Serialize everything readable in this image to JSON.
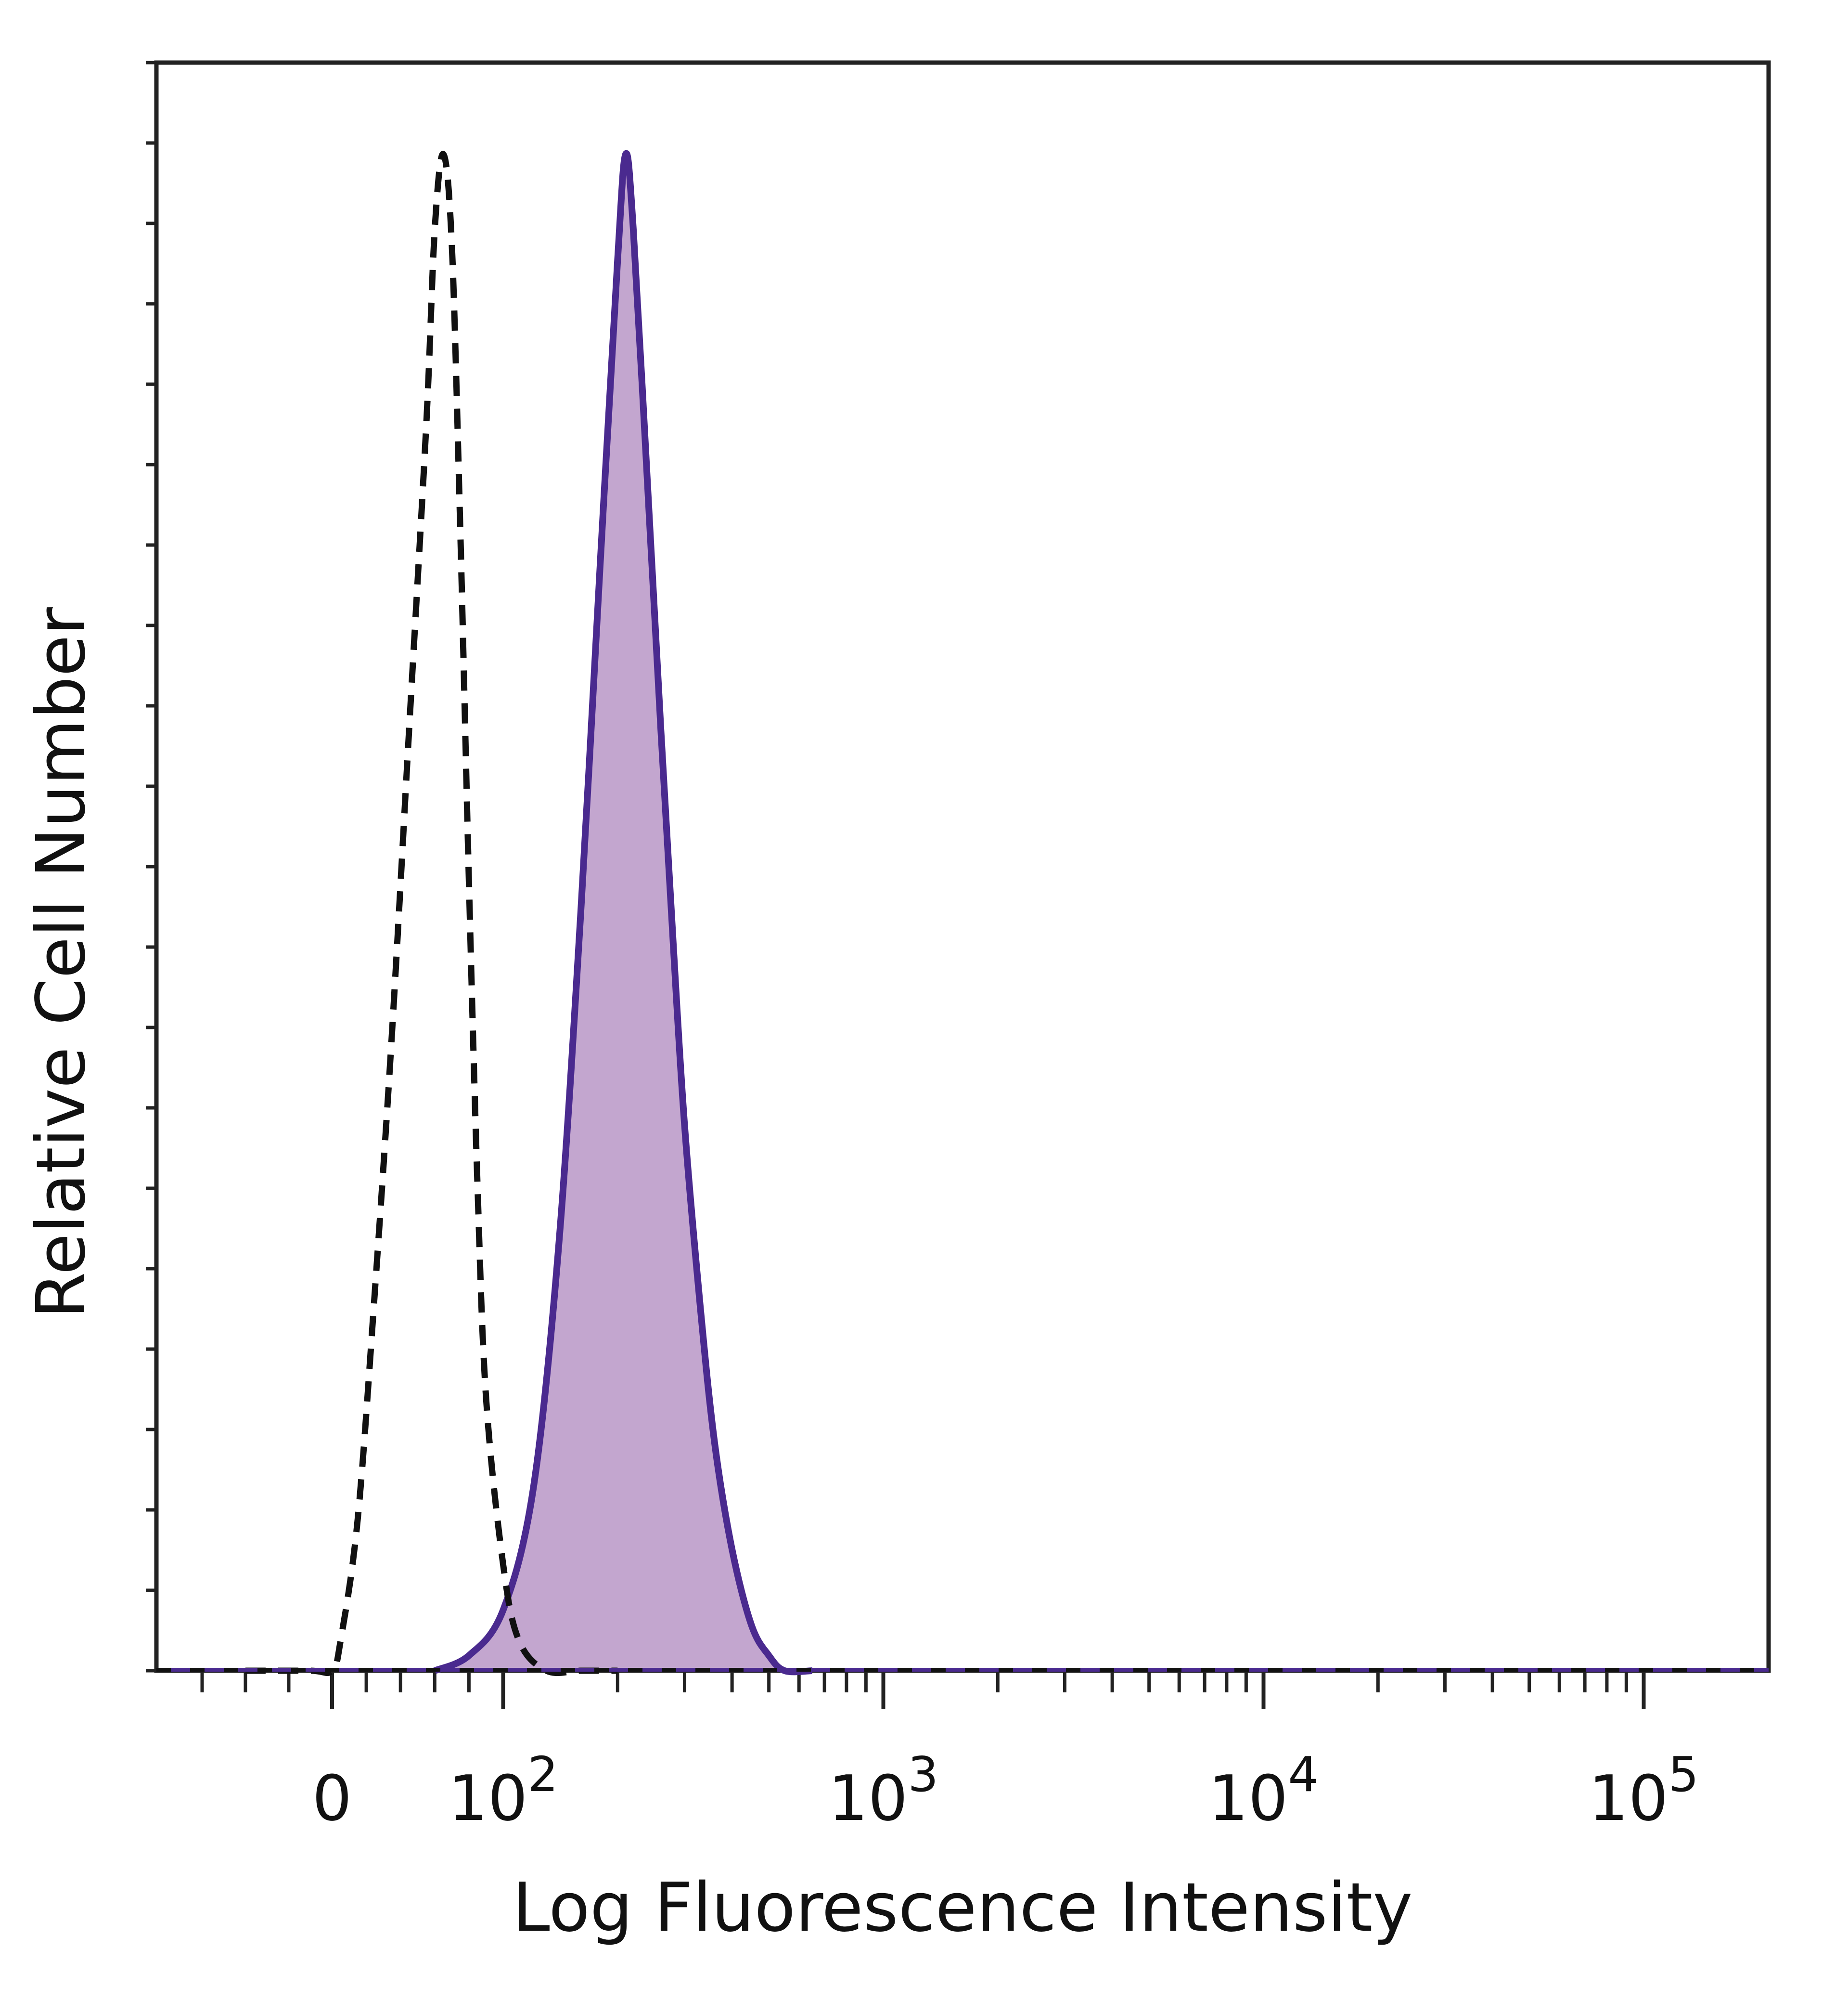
{
  "chart_data": {
    "type": "area",
    "xlabel": "Log Fluorescence Intensity",
    "ylabel": "Relative Cell Number",
    "x_scale": "biexponential",
    "x_tick_labels": [
      {
        "value": 0,
        "base": "0",
        "exp": ""
      },
      {
        "value": 100,
        "base": "10",
        "exp": "2"
      },
      {
        "value": 1000,
        "base": "10",
        "exp": "3"
      },
      {
        "value": 10000,
        "base": "10",
        "exp": "4"
      },
      {
        "value": 100000,
        "base": "10",
        "exp": "5"
      }
    ],
    "ylim": [
      0,
      100
    ],
    "grid": false,
    "colors": {
      "stained_line": "#4a2a8f",
      "stained_fill": "#c3a6cf",
      "control_line": "#111111",
      "frame": "#222222"
    },
    "series": [
      {
        "style": "dashed-outline",
        "x": [
          -40,
          -10,
          0,
          5,
          15,
          25,
          35,
          45,
          55,
          60,
          65,
          70,
          75,
          80,
          85,
          90,
          100,
          110,
          130,
          160,
          200
        ],
        "y": [
          0,
          0,
          0,
          2,
          10,
          25,
          42,
          62,
          82,
          95,
          100,
          94,
          75,
          52,
          32,
          18,
          7,
          2,
          0,
          0,
          0
        ]
      },
      {
        "style": "filled-solid",
        "x": [
          60,
          80,
          100,
          120,
          140,
          160,
          180,
          200,
          210,
          220,
          240,
          260,
          280,
          300,
          330,
          360,
          400,
          450,
          500,
          550,
          650
        ],
        "y": [
          0,
          1,
          4,
          12,
          28,
          50,
          73,
          93,
          100,
          95,
          78,
          62,
          48,
          36,
          24,
          15,
          8,
          3,
          1,
          0,
          0
        ]
      }
    ]
  }
}
